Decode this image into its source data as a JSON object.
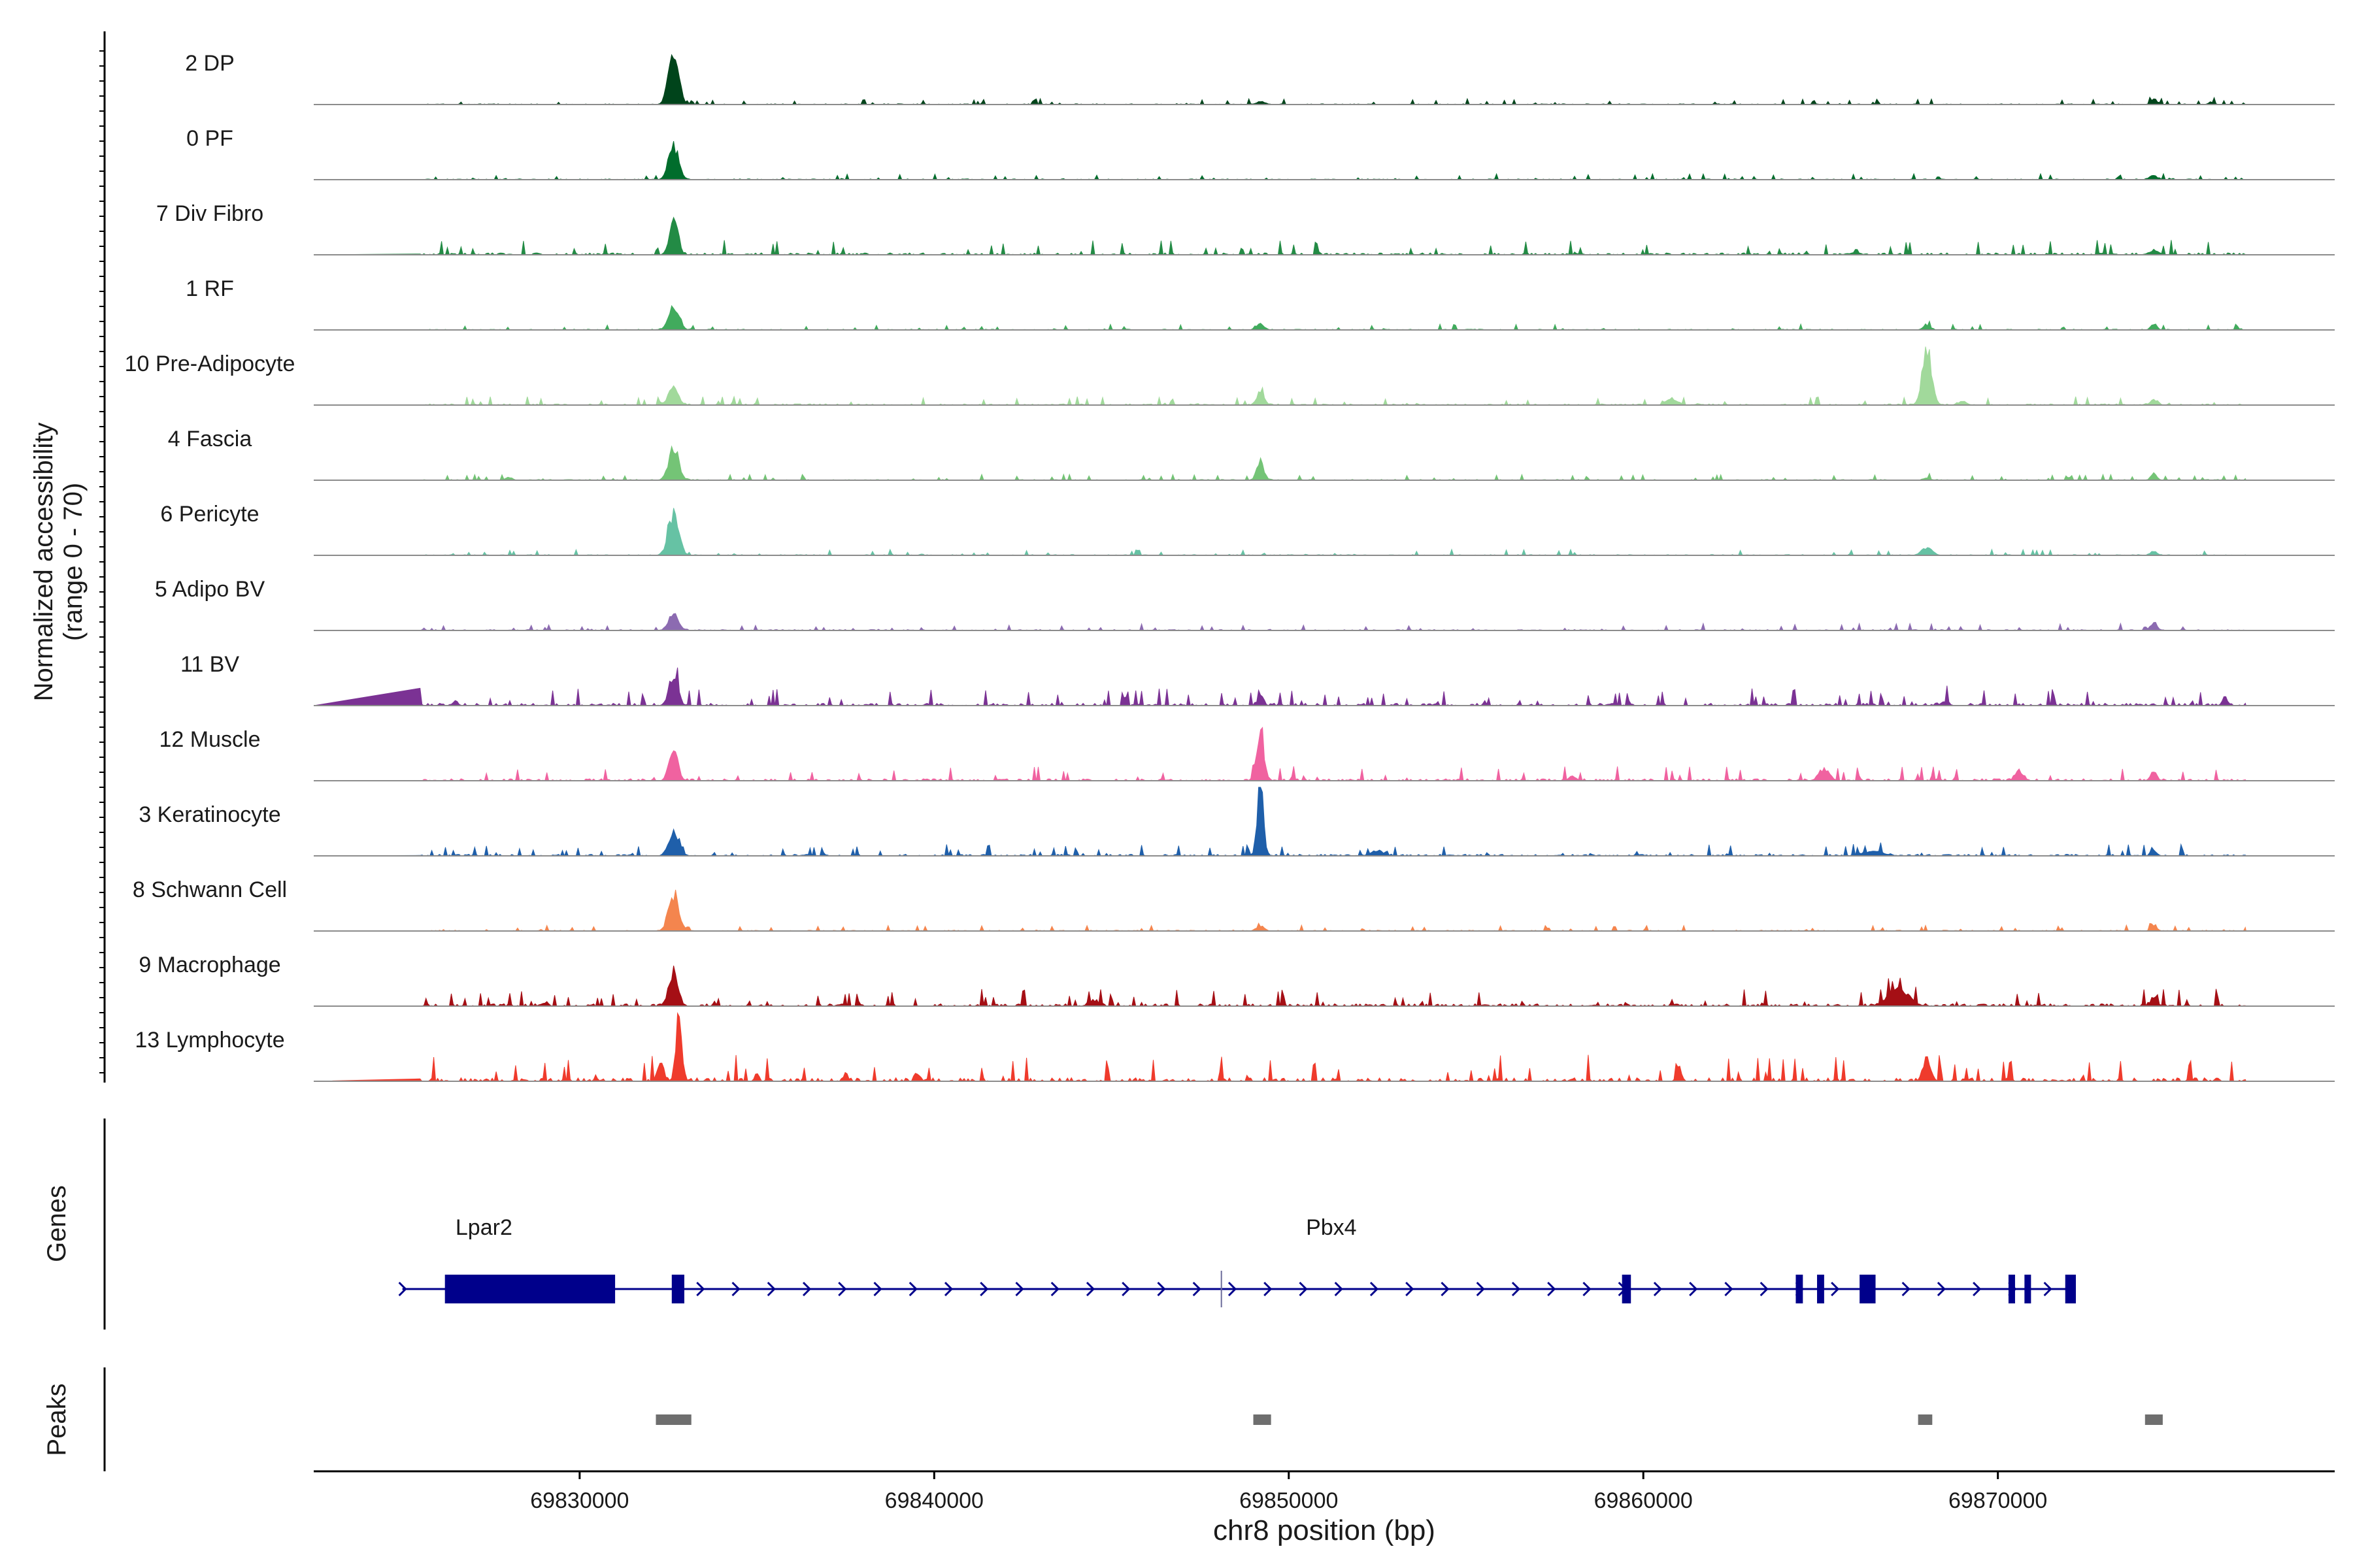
{
  "chart_data": {
    "type": "area",
    "title": "",
    "ylabel_lines": [
      "Normalized accessibility",
      "(range 0 - 70)"
    ],
    "ylim": [
      0,
      70
    ],
    "xlabel": "chr8 position (bp)",
    "xlim": [
      69822500,
      69879500
    ],
    "xticks": [
      69830000,
      69840000,
      69850000,
      69860000,
      69870000
    ],
    "xtick_labels": [
      "69830000",
      "69840000",
      "69850000",
      "69860000",
      "69870000"
    ],
    "genes_label": "Genes",
    "peaks_label": "Peaks",
    "tracks": [
      {
        "name": "2 DP",
        "color": "#00441b",
        "noise": 1.0,
        "peaks": [
          [
            69832650,
            62,
            200
          ],
          [
            69849200,
            4,
            150
          ],
          [
            69874400,
            7,
            120
          ],
          [
            69876000,
            3,
            100
          ]
        ]
      },
      {
        "name": "0 PF",
        "color": "#006d2c",
        "noise": 1.0,
        "peaks": [
          [
            69832650,
            40,
            200
          ],
          [
            69874400,
            5,
            150
          ]
        ]
      },
      {
        "name": "7 Div Fibro",
        "color": "#238b45",
        "noise": 2.5,
        "peaks": [
          [
            69832650,
            35,
            170
          ],
          [
            69832750,
            16,
            80
          ],
          [
            69874400,
            5,
            200
          ],
          [
            69866000,
            4,
            150
          ]
        ]
      },
      {
        "name": "1 RF",
        "color": "#41ab5d",
        "noise": 1.0,
        "peaks": [
          [
            69832650,
            30,
            200
          ],
          [
            69849200,
            7,
            150
          ],
          [
            69868000,
            5,
            150
          ],
          [
            69874400,
            7,
            120
          ]
        ]
      },
      {
        "name": "10 Pre-Adipocyte",
        "color": "#a1d99b",
        "noise": 1.5,
        "peaks": [
          [
            69832650,
            20,
            200
          ],
          [
            69849200,
            16,
            150
          ],
          [
            69860800,
            8,
            200
          ],
          [
            69868000,
            70,
            180
          ],
          [
            69874400,
            6,
            150
          ],
          [
            69869000,
            5,
            150
          ]
        ]
      },
      {
        "name": "4 Fascia",
        "color": "#74c476",
        "noise": 1.0,
        "peaks": [
          [
            69832650,
            40,
            200
          ],
          [
            69849200,
            20,
            150
          ],
          [
            69828000,
            4,
            120
          ],
          [
            69874400,
            8,
            120
          ],
          [
            69868000,
            3,
            120
          ]
        ]
      },
      {
        "name": "6 Pericyte",
        "color": "#66c2a4",
        "noise": 1.0,
        "peaks": [
          [
            69832650,
            50,
            210
          ],
          [
            69868000,
            9,
            200
          ],
          [
            69874400,
            5,
            120
          ]
        ]
      },
      {
        "name": "5 Adipo BV",
        "color": "#8c6bb1",
        "noise": 1.2,
        "peaks": [
          [
            69832650,
            20,
            200
          ],
          [
            69874400,
            10,
            120
          ]
        ]
      },
      {
        "name": "11 BV",
        "color": "#7b3294",
        "noise": 3.0,
        "peaks": [
          [
            69832650,
            40,
            170
          ],
          [
            69849200,
            11,
            120
          ],
          [
            69826500,
            6,
            100
          ],
          [
            69876400,
            10,
            100
          ],
          [
            69868500,
            5,
            150
          ]
        ]
      },
      {
        "name": "12 Muscle",
        "color": "#f062a0",
        "noise": 2.5,
        "peaks": [
          [
            69832650,
            42,
            170
          ],
          [
            69849200,
            55,
            150
          ],
          [
            69865100,
            15,
            200
          ],
          [
            69870600,
            12,
            150
          ],
          [
            69874400,
            12,
            120
          ],
          [
            69858000,
            5,
            150
          ]
        ]
      },
      {
        "name": "3 Keratinocyte",
        "color": "#1f5faa",
        "noise": 2.0,
        "peaks": [
          [
            69832650,
            30,
            200
          ],
          [
            69849200,
            90,
            120
          ],
          [
            69852500,
            6,
            250
          ],
          [
            69866500,
            5,
            400
          ],
          [
            69874400,
            7,
            120
          ]
        ]
      },
      {
        "name": "8 Schwann Cell",
        "color": "#f4854e",
        "noise": 1.0,
        "peaks": [
          [
            69832650,
            45,
            200
          ],
          [
            69849200,
            6,
            150
          ],
          [
            69874400,
            7,
            120
          ]
        ]
      },
      {
        "name": "9 Macrophage",
        "color": "#a50f15",
        "noise": 3.0,
        "peaks": [
          [
            69832650,
            40,
            180
          ],
          [
            69867200,
            20,
            400
          ],
          [
            69844500,
            6,
            200
          ],
          [
            69874400,
            12,
            120
          ],
          [
            69829000,
            4,
            150
          ]
        ]
      },
      {
        "name": "13 Lymphocyte",
        "color": "#ef3b2c",
        "noise": 4.5,
        "peaks": [
          [
            69832800,
            80,
            120
          ],
          [
            69832300,
            20,
            120
          ],
          [
            69868000,
            30,
            150
          ],
          [
            69861000,
            22,
            80
          ],
          [
            69825000,
            12,
            60
          ],
          [
            69835000,
            10,
            80
          ],
          [
            69837500,
            12,
            80
          ],
          [
            69839500,
            10,
            80
          ]
        ]
      }
    ],
    "genes": [
      {
        "name": "Lpar2",
        "start": 69825000,
        "end": 69833000,
        "exons": [
          [
            69826200,
            69831000
          ],
          [
            69832600,
            69832950
          ]
        ]
      },
      {
        "name": "Pbx4",
        "start": 69832600,
        "end": 69872200,
        "exons": [
          [
            69832600,
            69832950
          ],
          [
            69859400,
            69859650
          ],
          [
            69864300,
            69864500
          ],
          [
            69864900,
            69865100
          ],
          [
            69866100,
            69866550
          ],
          [
            69870300,
            69870400
          ],
          [
            69870750,
            69870850
          ],
          [
            69871900,
            69872200
          ]
        ]
      }
    ],
    "peaks": [
      [
        69832150,
        69833150
      ],
      [
        69849000,
        69849500
      ],
      [
        69867750,
        69868150
      ],
      [
        69874150,
        69874650
      ]
    ]
  }
}
